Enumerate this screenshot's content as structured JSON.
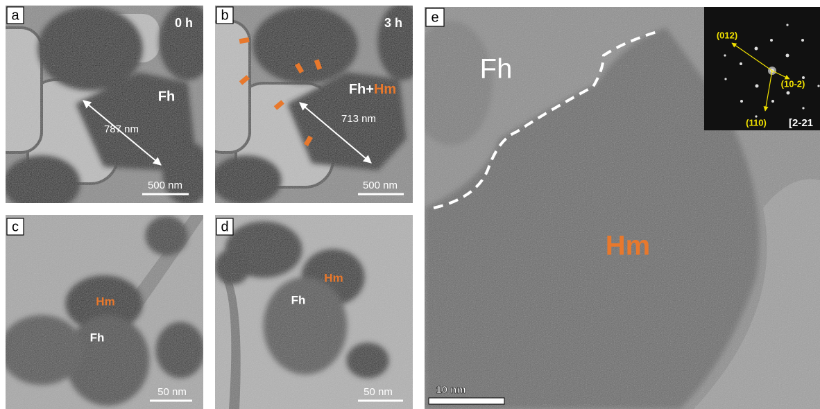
{
  "panels": [
    {
      "label": "a",
      "time": "0 h",
      "phase": "Fh",
      "distance": "787 nm",
      "scale": "500 nm"
    },
    {
      "label": "b",
      "time": "3 h",
      "phase": [
        "Fh+",
        "Hm"
      ],
      "distance": "713 nm",
      "scale": "500 nm"
    },
    {
      "label": "c",
      "phases": [
        "Hm",
        "Fh"
      ],
      "scale": "50 nm"
    },
    {
      "label": "d",
      "phases": [
        "Hm",
        "Fh"
      ],
      "scale": "50 nm"
    },
    {
      "label": "e",
      "phases": [
        "Fh",
        "Hm"
      ],
      "scale": "10 nm",
      "inset": {
        "spots": [
          "(012)",
          "(10-2)",
          "(110)"
        ],
        "zone_axis": "[2-21"
      }
    }
  ]
}
